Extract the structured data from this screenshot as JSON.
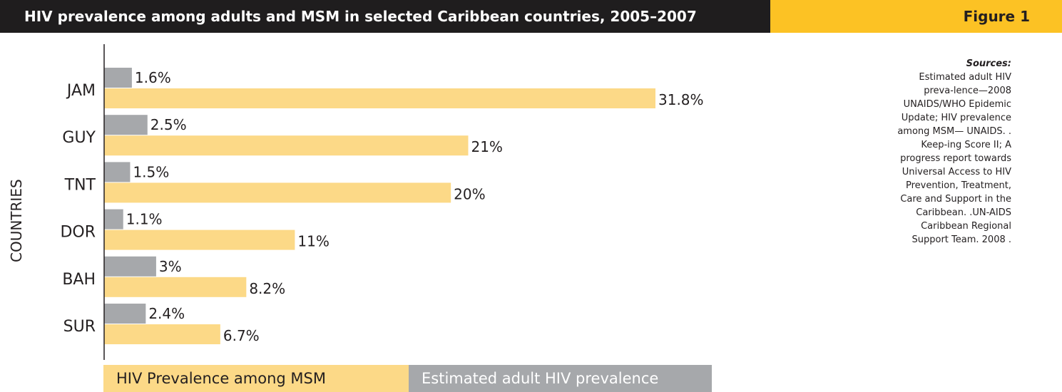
{
  "header": {
    "title": "HIV prevalence among adults and MSM in selected Caribbean countries, 2005–2007",
    "figure_label": "Figure 1"
  },
  "sources": {
    "heading": "Sources:",
    "text": "Estimated adult HIV preva-lence—2008 UNAIDS/WHO Epidemic Update; HIV prevalence among MSM— UNAIDS. . Keep-ing Score II; A progress report towards Universal Access to HIV Prevention, Treatment, Care and Support in the Caribbean. .UN-AIDS Caribbean Regional Support Team. 2008 ."
  },
  "colors": {
    "header_dark": "#1f1d1e",
    "header_accent": "#fcc224",
    "bar_gray": "#a6a8ab",
    "bar_yellow": "#fcd987"
  },
  "chart_data": {
    "type": "bar",
    "orientation": "horizontal",
    "title": "HIV prevalence among adults and MSM in selected Caribbean countries, 2005–2007",
    "ylabel": "COUNTRIES",
    "xlabel": "",
    "categories": [
      "JAM",
      "GUY",
      "TNT",
      "DOR",
      "BAH",
      "SUR"
    ],
    "series": [
      {
        "name": "Estimated adult HIV prevalence",
        "color": "#a6a8ab",
        "values": [
          1.6,
          2.5,
          1.5,
          1.1,
          3,
          2.4
        ],
        "labels": [
          "1.6%",
          "2.5%",
          "1.5%",
          "1.1%",
          "3%",
          "2.4%"
        ]
      },
      {
        "name": "HIV Prevalence among MSM",
        "color": "#fcd987",
        "values": [
          31.8,
          21,
          20,
          11,
          8.2,
          6.7
        ],
        "labels": [
          "31.8%",
          "21%",
          "20%",
          "11%",
          "8.2%",
          "6.7%"
        ]
      }
    ],
    "xlim": [
      0,
      31.8
    ],
    "grid": false,
    "legend_position": "bottom"
  },
  "legend": {
    "msm_label": "HIV Prevalence among MSM",
    "adult_label": "Estimated adult HIV prevalence"
  }
}
